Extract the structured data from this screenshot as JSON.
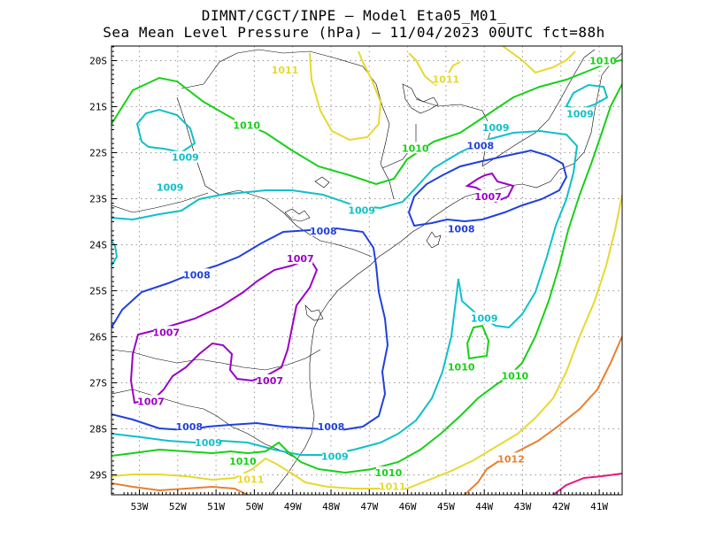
{
  "title_line1": "DIMNT/CGCT/INPE –  Model Eta05_M01_",
  "title_line2": "Sea Mean Level Pressure (hPa) – 11/04/2023 00UTC fct=88h",
  "colors": {
    "c1007": "#9b00c8",
    "c1008": "#2040e0",
    "c1009": "#10c0c8",
    "c1010": "#18d018",
    "c1011": "#e8d830",
    "c1012": "#e88030",
    "c1013": "#e81878",
    "grid": "#999999",
    "boundary": "#000000"
  },
  "x_ticks": [
    "53W",
    "52W",
    "51W",
    "50W",
    "49W",
    "48W",
    "47W",
    "46W",
    "45W",
    "44W",
    "43W",
    "42W",
    "41W"
  ],
  "y_ticks": [
    "20S",
    "21S",
    "22S",
    "23S",
    "24S",
    "25S",
    "26S",
    "27S",
    "28S",
    "29S"
  ],
  "contour_labels": [
    {
      "text": "1011",
      "lon": -49.2,
      "lat": -20.2,
      "level": "c1011"
    },
    {
      "text": "1011",
      "lon": -45.0,
      "lat": -20.4,
      "level": "c1011"
    },
    {
      "text": "1010",
      "lon": -40.9,
      "lat": -20.0,
      "level": "c1010"
    },
    {
      "text": "1009",
      "lon": -41.5,
      "lat": -21.15,
      "level": "c1009"
    },
    {
      "text": "1010",
      "lon": -50.2,
      "lat": -21.4,
      "level": "c1010"
    },
    {
      "text": "1009",
      "lon": -43.7,
      "lat": -21.45,
      "level": "c1009"
    },
    {
      "text": "1010",
      "lon": -45.8,
      "lat": -21.9,
      "level": "c1010"
    },
    {
      "text": "1009",
      "lon": -51.8,
      "lat": -22.1,
      "level": "c1009"
    },
    {
      "text": "1008",
      "lon": -44.1,
      "lat": -21.85,
      "level": "c1008"
    },
    {
      "text": "1009",
      "lon": -52.2,
      "lat": -22.75,
      "level": "c1009"
    },
    {
      "text": "1007",
      "lon": -43.9,
      "lat": -22.95,
      "level": "c1007"
    },
    {
      "text": "1009",
      "lon": -47.2,
      "lat": -23.25,
      "level": "c1009"
    },
    {
      "text": "1008",
      "lon": -44.6,
      "lat": -23.65,
      "level": "c1008"
    },
    {
      "text": "1008",
      "lon": -48.2,
      "lat": -23.7,
      "level": "c1008"
    },
    {
      "text": "1007",
      "lon": -48.8,
      "lat": -24.3,
      "level": "c1007"
    },
    {
      "text": "1008",
      "lon": -51.5,
      "lat": -24.65,
      "level": "c1008"
    },
    {
      "text": "1009",
      "lon": -44.0,
      "lat": -25.6,
      "level": "c1009"
    },
    {
      "text": "1007",
      "lon": -52.3,
      "lat": -25.9,
      "level": "c1007"
    },
    {
      "text": "1010",
      "lon": -44.6,
      "lat": -26.65,
      "level": "c1010"
    },
    {
      "text": "1010",
      "lon": -43.2,
      "lat": -26.85,
      "level": "c1010"
    },
    {
      "text": "1007",
      "lon": -49.6,
      "lat": -26.95,
      "level": "c1007"
    },
    {
      "text": "1007",
      "lon": -52.7,
      "lat": -27.4,
      "level": "c1007"
    },
    {
      "text": "1008",
      "lon": -51.7,
      "lat": -27.95,
      "level": "c1008"
    },
    {
      "text": "1008",
      "lon": -48.0,
      "lat": -27.95,
      "level": "c1008"
    },
    {
      "text": "1009",
      "lon": -51.2,
      "lat": -28.3,
      "level": "c1009"
    },
    {
      "text": "1009",
      "lon": -47.9,
      "lat": -28.6,
      "level": "c1009"
    },
    {
      "text": "1012",
      "lon": -43.3,
      "lat": -28.65,
      "level": "c1012"
    },
    {
      "text": "1010",
      "lon": -50.3,
      "lat": -28.7,
      "level": "c1010"
    },
    {
      "text": "1010",
      "lon": -46.5,
      "lat": -28.95,
      "level": "c1010"
    },
    {
      "text": "1011",
      "lon": -50.1,
      "lat": -29.1,
      "level": "c1011"
    },
    {
      "text": "1011",
      "lon": -46.4,
      "lat": -29.25,
      "level": "c1011"
    }
  ]
}
